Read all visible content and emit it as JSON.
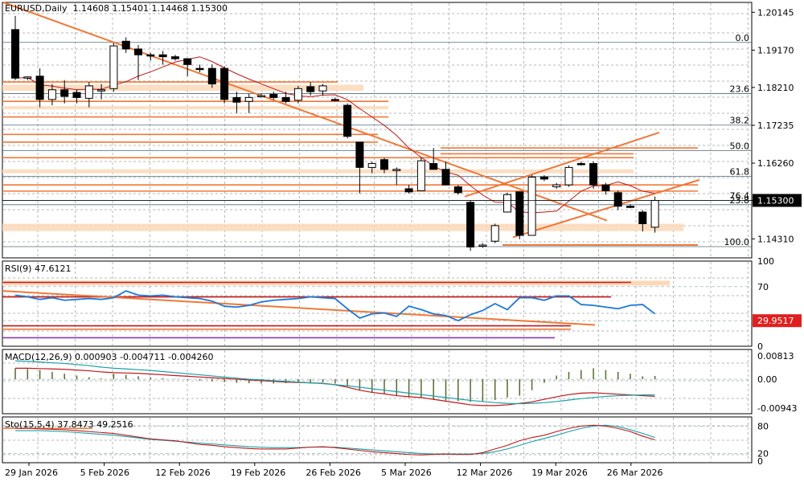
{
  "symbol_header": {
    "symbol": "EURUSD",
    "timeframe": "Daily",
    "open": "1.14608",
    "high": "1.15401",
    "low": "1.14468",
    "close": "1.15300"
  },
  "current_price_label": "1.15300",
  "fib_levels": [
    {
      "label": "0.0",
      "value": 1.1937
    },
    {
      "label": "23.6",
      "value": 1.1805
    },
    {
      "label": "38.2",
      "value": 1.1724
    },
    {
      "label": "50.0",
      "value": 1.1658
    },
    {
      "label": "61.8",
      "value": 1.1592
    },
    {
      "label": "76.4",
      "value": 1.153
    },
    {
      "label": "23.8",
      "value": 1.1519
    },
    {
      "label": "100.0",
      "value": 1.1411
    }
  ],
  "indicators": {
    "rsi": {
      "name": "RSI(9)",
      "value": "47.6121",
      "marker": "29.9517",
      "levels": [
        "100",
        "70",
        "30",
        "0"
      ]
    },
    "macd": {
      "name": "MACD(12,26,9)",
      "values": "0.000903 -0.004711 -0.004260",
      "axis": [
        "0.00813",
        "0.00",
        "-0.00943"
      ]
    },
    "stoch": {
      "name": "Sto(15,5,4)",
      "values": "37.8473 49.2516",
      "axis": [
        "80",
        "20",
        "0"
      ]
    }
  },
  "date_labels": [
    "29 Jan 2026",
    "5 Feb 2026",
    "12 Feb 2026",
    "19 Feb 2026",
    "26 Feb 2026",
    "5 Mar 2026",
    "12 Mar 2026",
    "19 Mar 2026",
    "26 Mar 2026"
  ],
  "colors": {
    "bull": "#ffffff",
    "bear": "#000000",
    "ma": "#c01818",
    "trend": "#f07838",
    "zone": "#fcd8b8",
    "rsi": "#1e78d8",
    "macd_signal": "#c01818",
    "macd_main": "#18a0a8",
    "sto_main": "#c01818",
    "sto_signal": "#18a0a8",
    "price_tag": "#000000",
    "rsi_tag": "#e02020"
  },
  "chart_data": [
    {
      "type": "candlestick",
      "title": "EURUSD,Daily",
      "price_axis_ticks": [
        1.20145,
        1.1917,
        1.1821,
        1.17235,
        1.1626,
        1.153,
        1.1431
      ],
      "ylim": [
        1.1382,
        1.204
      ],
      "candles": [
        {
          "o": 1.197,
          "h": 1.2005,
          "l": 1.184,
          "c": 1.1845
        },
        {
          "o": 1.1845,
          "h": 1.185,
          "l": 1.184,
          "c": 1.1848
        },
        {
          "o": 1.185,
          "h": 1.187,
          "l": 1.177,
          "c": 1.179
        },
        {
          "o": 1.179,
          "h": 1.183,
          "l": 1.1775,
          "c": 1.1815
        },
        {
          "o": 1.1815,
          "h": 1.184,
          "l": 1.178,
          "c": 1.1798
        },
        {
          "o": 1.1808,
          "h": 1.1815,
          "l": 1.178,
          "c": 1.1795
        },
        {
          "o": 1.1793,
          "h": 1.1835,
          "l": 1.177,
          "c": 1.1825
        },
        {
          "o": 1.1815,
          "h": 1.183,
          "l": 1.179,
          "c": 1.1815
        },
        {
          "o": 1.1818,
          "h": 1.1935,
          "l": 1.181,
          "c": 1.1928
        },
        {
          "o": 1.194,
          "h": 1.195,
          "l": 1.191,
          "c": 1.192
        },
        {
          "o": 1.192,
          "h": 1.193,
          "l": 1.184,
          "c": 1.1905
        },
        {
          "o": 1.1905,
          "h": 1.191,
          "l": 1.189,
          "c": 1.1903
        },
        {
          "o": 1.1905,
          "h": 1.1915,
          "l": 1.188,
          "c": 1.19
        },
        {
          "o": 1.19,
          "h": 1.1905,
          "l": 1.189,
          "c": 1.1895
        },
        {
          "o": 1.1895,
          "h": 1.1895,
          "l": 1.185,
          "c": 1.188
        },
        {
          "o": 1.187,
          "h": 1.188,
          "l": 1.186,
          "c": 1.1868
        },
        {
          "o": 1.187,
          "h": 1.188,
          "l": 1.182,
          "c": 1.183
        },
        {
          "o": 1.187,
          "h": 1.1875,
          "l": 1.178,
          "c": 1.179
        },
        {
          "o": 1.1795,
          "h": 1.181,
          "l": 1.1755,
          "c": 1.1783
        },
        {
          "o": 1.1785,
          "h": 1.1805,
          "l": 1.1755,
          "c": 1.1795
        },
        {
          "o": 1.18,
          "h": 1.1805,
          "l": 1.1795,
          "c": 1.18
        },
        {
          "o": 1.1803,
          "h": 1.181,
          "l": 1.179,
          "c": 1.1795
        },
        {
          "o": 1.1795,
          "h": 1.181,
          "l": 1.178,
          "c": 1.1785
        },
        {
          "o": 1.1788,
          "h": 1.1825,
          "l": 1.178,
          "c": 1.1818
        },
        {
          "o": 1.1823,
          "h": 1.1835,
          "l": 1.18,
          "c": 1.181
        },
        {
          "o": 1.1812,
          "h": 1.183,
          "l": 1.18,
          "c": 1.1825
        },
        {
          "o": 1.179,
          "h": 1.1795,
          "l": 1.1785,
          "c": 1.1788
        },
        {
          "o": 1.1775,
          "h": 1.178,
          "l": 1.169,
          "c": 1.1695
        },
        {
          "o": 1.168,
          "h": 1.168,
          "l": 1.1548,
          "c": 1.1615
        },
        {
          "o": 1.1615,
          "h": 1.163,
          "l": 1.16,
          "c": 1.1625
        },
        {
          "o": 1.1635,
          "h": 1.164,
          "l": 1.16,
          "c": 1.161
        },
        {
          "o": 1.161,
          "h": 1.1615,
          "l": 1.157,
          "c": 1.161
        },
        {
          "o": 1.156,
          "h": 1.157,
          "l": 1.1548,
          "c": 1.1552
        },
        {
          "o": 1.1555,
          "h": 1.164,
          "l": 1.1555,
          "c": 1.1632
        },
        {
          "o": 1.1625,
          "h": 1.1665,
          "l": 1.161,
          "c": 1.161
        },
        {
          "o": 1.161,
          "h": 1.163,
          "l": 1.157,
          "c": 1.157
        },
        {
          "o": 1.1565,
          "h": 1.157,
          "l": 1.1545,
          "c": 1.155
        },
        {
          "o": 1.1525,
          "h": 1.153,
          "l": 1.14,
          "c": 1.141
        },
        {
          "o": 1.1413,
          "h": 1.142,
          "l": 1.1408,
          "c": 1.1415
        },
        {
          "o": 1.1425,
          "h": 1.147,
          "l": 1.142,
          "c": 1.1465
        },
        {
          "o": 1.15,
          "h": 1.155,
          "l": 1.15,
          "c": 1.1545
        },
        {
          "o": 1.1552,
          "h": 1.1552,
          "l": 1.143,
          "c": 1.144
        },
        {
          "o": 1.144,
          "h": 1.1595,
          "l": 1.144,
          "c": 1.159
        },
        {
          "o": 1.159,
          "h": 1.1595,
          "l": 1.158,
          "c": 1.1585
        },
        {
          "o": 1.1565,
          "h": 1.1575,
          "l": 1.156,
          "c": 1.157
        },
        {
          "o": 1.157,
          "h": 1.162,
          "l": 1.1565,
          "c": 1.1615
        },
        {
          "o": 1.1625,
          "h": 1.163,
          "l": 1.162,
          "c": 1.1622
        },
        {
          "o": 1.1625,
          "h": 1.163,
          "l": 1.156,
          "c": 1.157
        },
        {
          "o": 1.157,
          "h": 1.1575,
          "l": 1.1545,
          "c": 1.1555
        },
        {
          "o": 1.155,
          "h": 1.1555,
          "l": 1.1505,
          "c": 1.1515
        },
        {
          "o": 1.1515,
          "h": 1.152,
          "l": 1.151,
          "c": 1.1512
        },
        {
          "o": 1.15,
          "h": 1.1505,
          "l": 1.145,
          "c": 1.147
        },
        {
          "o": 1.1461,
          "h": 1.154,
          "l": 1.1447,
          "c": 1.153
        }
      ]
    },
    {
      "type": "line",
      "title": "RSI(9) 47.6121",
      "ylim": [
        0,
        100
      ],
      "levels": [
        30,
        70
      ],
      "series": [
        {
          "values": [
            60,
            58,
            55,
            57,
            54,
            55,
            56,
            55,
            57,
            65,
            60,
            59,
            60,
            58,
            57,
            56,
            53,
            47,
            46,
            48,
            52,
            54,
            55,
            56,
            58,
            57,
            56,
            44,
            33,
            38,
            39,
            35,
            47,
            43,
            38,
            36,
            30,
            37,
            42,
            50,
            43,
            57,
            57,
            54,
            59,
            59,
            49,
            48,
            46,
            44,
            48,
            49,
            38
          ]
        }
      ]
    },
    {
      "type": "bar",
      "title": "MACD(12,26,9) 0.000903 -0.004711 -0.004260",
      "ylim": [
        -0.00943,
        0.00813
      ],
      "series": [
        {
          "name": "histogram",
          "values": [
            0.003,
            0.0028,
            0.0025,
            0.002,
            0.0015,
            0.001,
            0.0005,
            0.0002,
            0.0015,
            0.0012,
            0.0008,
            0.0005,
            0.0003,
            0.0001,
            -0.0002,
            -0.0004,
            -0.0006,
            -0.0008,
            -0.001,
            -0.0011,
            -0.0012,
            -0.0012,
            -0.0011,
            -0.001,
            -0.0009,
            -0.0008,
            -0.0012,
            -0.002,
            -0.003,
            -0.0035,
            -0.004,
            -0.0045,
            -0.005,
            -0.0052,
            -0.0055,
            -0.0058,
            -0.006,
            -0.0062,
            -0.006,
            -0.0057,
            -0.005,
            -0.0045,
            -0.003,
            -0.001,
            0.001,
            0.002,
            0.0025,
            0.003,
            0.0025,
            0.002,
            0.0015,
            0.0008,
            0.0009
          ]
        },
        {
          "name": "signal",
          "values": [
            0.003,
            0.003,
            0.0029,
            0.0028,
            0.0027,
            0.0025,
            0.0023,
            0.002,
            0.0018,
            0.0017,
            0.0016,
            0.0014,
            0.0012,
            0.001,
            0.0008,
            0.0006,
            0.0004,
            0.0002,
            0.0,
            -0.0002,
            -0.0004,
            -0.0006,
            -0.0008,
            -0.0009,
            -0.001,
            -0.0011,
            -0.0015,
            -0.0022,
            -0.003,
            -0.0036,
            -0.004,
            -0.0045,
            -0.0048,
            -0.005,
            -0.0055,
            -0.006,
            -0.0065,
            -0.007,
            -0.0072,
            -0.0072,
            -0.007,
            -0.0066,
            -0.0062,
            -0.0055,
            -0.0048,
            -0.0042,
            -0.0038,
            -0.0037,
            -0.0039,
            -0.0041,
            -0.0043,
            -0.0045,
            -0.0047
          ]
        },
        {
          "name": "main",
          "values": [
            0.005,
            0.0049,
            0.0047,
            0.0045,
            0.0043,
            0.004,
            0.0037,
            0.0033,
            0.003,
            0.0028,
            0.0026,
            0.0024,
            0.0021,
            0.0018,
            0.0015,
            0.0012,
            0.0009,
            0.0006,
            0.0003,
            0.0,
            -0.0002,
            -0.0004,
            -0.0006,
            -0.0008,
            -0.001,
            -0.0012,
            -0.0015,
            -0.0018,
            -0.0022,
            -0.0026,
            -0.003,
            -0.0034,
            -0.0038,
            -0.0042,
            -0.0046,
            -0.005,
            -0.0054,
            -0.0058,
            -0.0061,
            -0.0064,
            -0.0066,
            -0.0067,
            -0.0066,
            -0.0064,
            -0.0061,
            -0.0057,
            -0.0053,
            -0.005,
            -0.0047,
            -0.0045,
            -0.0044,
            -0.0043,
            -0.0043
          ]
        }
      ]
    },
    {
      "type": "line",
      "title": "Sto(15,5,4) 37.8473 49.2516",
      "ylim": [
        0,
        100
      ],
      "levels": [
        20,
        80
      ],
      "series": [
        {
          "values": [
            75,
            75,
            74,
            73,
            72,
            70,
            68,
            66,
            64,
            60,
            56,
            52,
            50,
            48,
            44,
            40,
            38,
            35,
            33,
            31,
            30,
            30,
            30,
            32,
            34,
            35,
            33,
            30,
            27,
            24,
            22,
            20,
            18,
            17,
            18,
            19,
            18,
            18,
            22,
            30,
            38,
            48,
            55,
            60,
            68,
            75,
            80,
            82,
            80,
            75,
            68,
            58,
            50
          ]
        },
        {
          "values": [
            70,
            70,
            70,
            69,
            68,
            66,
            64,
            62,
            60,
            57,
            54,
            51,
            49,
            47,
            45,
            43,
            41,
            39,
            37,
            35,
            34,
            33,
            33,
            33,
            34,
            34,
            34,
            32,
            30,
            28,
            26,
            24,
            22,
            20,
            19,
            19,
            19,
            19,
            20,
            24,
            30,
            38,
            46,
            53,
            60,
            68,
            75,
            80,
            82,
            79,
            72,
            64,
            55
          ]
        }
      ]
    }
  ]
}
